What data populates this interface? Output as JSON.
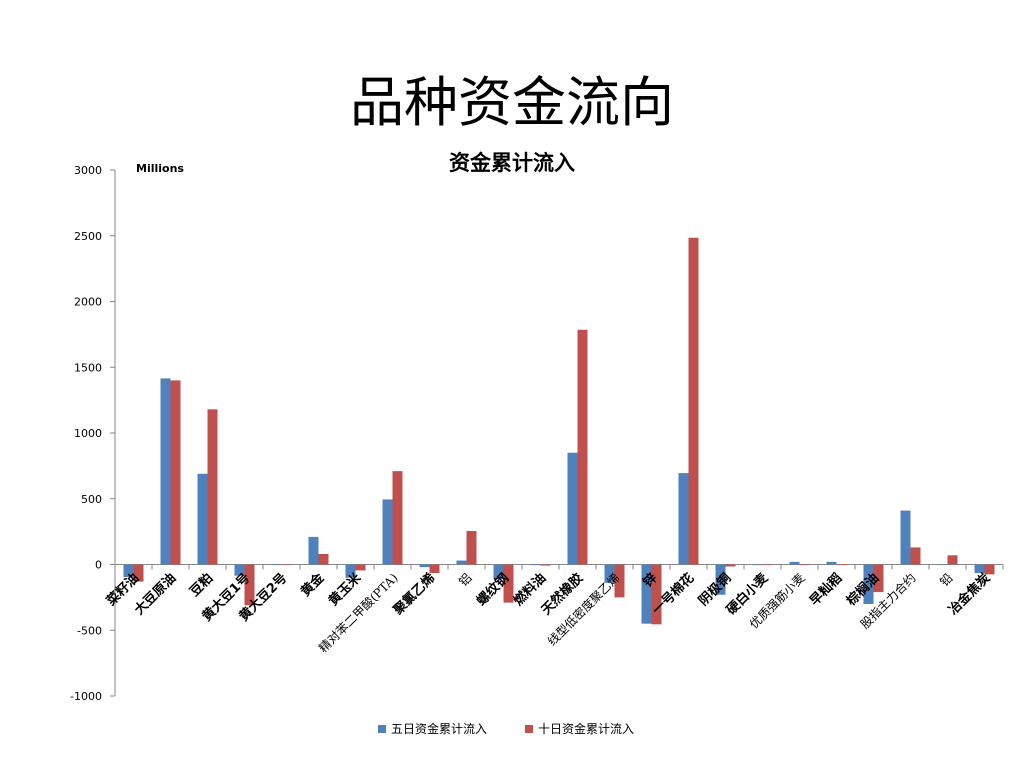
{
  "slide_title": "品种资金流向",
  "chart_data": {
    "type": "bar",
    "title": "资金累计流入",
    "unit_label": "Millions",
    "ylim": [
      -1000,
      3000
    ],
    "yticks": [
      -1000,
      -500,
      0,
      500,
      1000,
      1500,
      2000,
      2500,
      3000
    ],
    "grid": false,
    "legend_position": "bottom",
    "categories": [
      "菜籽油",
      "大豆原油",
      "豆粕",
      "黄大豆1号",
      "黄大豆2号",
      "黄金",
      "黄玉米",
      "精对苯二甲酸(PTA)",
      "聚氯乙烯",
      "铝",
      "螺纹钢",
      "燃料油",
      "天然橡胶",
      "线型低密度聚乙烯",
      "锌",
      "一号棉花",
      "阴极铜",
      "硬白小麦",
      "优质强筋小麦",
      "早籼稻",
      "棕榈油",
      "股指主力合约",
      "铅",
      "冶金焦炭"
    ],
    "series": [
      {
        "name": "五日资金累计流入",
        "color": "#4F81BD",
        "values": [
          -95,
          1415,
          690,
          -85,
          0,
          210,
          -100,
          495,
          -20,
          30,
          -110,
          -5,
          850,
          -140,
          -450,
          695,
          -230,
          -5,
          20,
          20,
          -300,
          410,
          0,
          -65
        ]
      },
      {
        "name": "十日资金累计流入",
        "color": "#C0504D",
        "values": [
          -130,
          1400,
          1180,
          -310,
          0,
          80,
          -45,
          710,
          -65,
          255,
          -290,
          -8,
          1785,
          -250,
          -455,
          2485,
          -15,
          -5,
          -5,
          -5,
          -210,
          130,
          70,
          -75
        ]
      }
    ]
  }
}
